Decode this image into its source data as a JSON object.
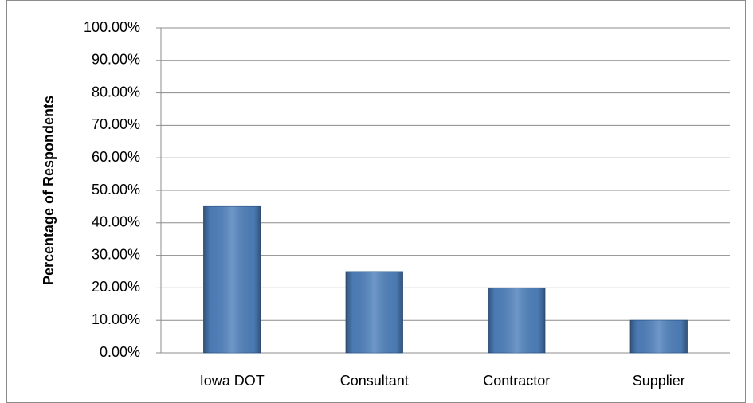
{
  "chart_data": {
    "type": "bar",
    "y_label": "Percentage of Respondents",
    "categories": [
      "Iowa DOT",
      "Consultant",
      "Contractor",
      "Supplier"
    ],
    "values": [
      45,
      25,
      20,
      10
    ],
    "color": "#4f81bd",
    "ylim": [
      0,
      100
    ],
    "yticks": [
      {
        "value": 0,
        "label": "0.00%"
      },
      {
        "value": 10,
        "label": "10.00%"
      },
      {
        "value": 20,
        "label": "20.00%"
      },
      {
        "value": 30,
        "label": "30.00%"
      },
      {
        "value": 40,
        "label": "40.00%"
      },
      {
        "value": 50,
        "label": "50.00%"
      },
      {
        "value": 60,
        "label": "60.00%"
      },
      {
        "value": 70,
        "label": "70.00%"
      },
      {
        "value": 80,
        "label": "80.00%"
      },
      {
        "value": 90,
        "label": "90.00%"
      },
      {
        "value": 100,
        "label": "100.00%"
      }
    ],
    "grid": true
  }
}
